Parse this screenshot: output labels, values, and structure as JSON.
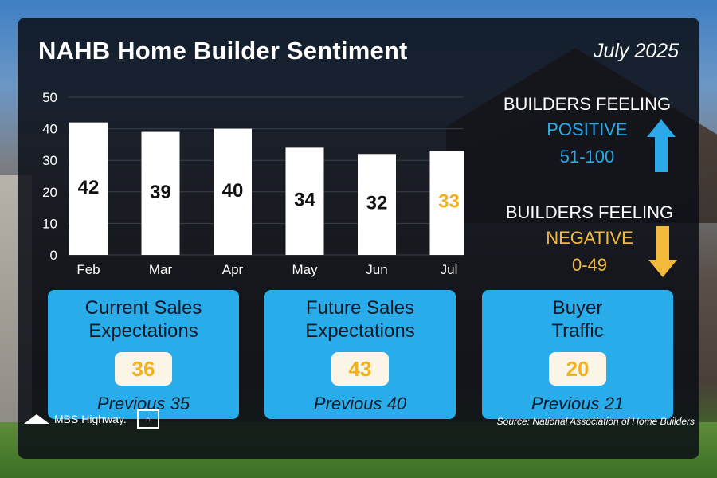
{
  "title": "NAHB Home Builder Sentiment",
  "date": "July 2025",
  "chart_data": {
    "type": "bar",
    "categories": [
      "Feb",
      "Mar",
      "Apr",
      "May",
      "Jun",
      "Jul"
    ],
    "values": [
      42,
      39,
      40,
      34,
      32,
      33
    ],
    "ylim": [
      0,
      50
    ],
    "yticks": [
      0,
      10,
      20,
      30,
      40,
      50
    ],
    "grid": true,
    "highlight_index": 5,
    "colors": {
      "bar": "#ffffff",
      "label": "#111111",
      "highlight_label": "#f2b21f",
      "grid": "#3a3f48",
      "tick_text": "#ffffff"
    }
  },
  "legend": {
    "positive": {
      "heading": "BUILDERS FEELING",
      "label": "POSITIVE",
      "range": "51-100",
      "color": "#2ba9e8"
    },
    "negative": {
      "heading": "BUILDERS FEELING",
      "label": "NEGATIVE",
      "range": "0-49",
      "color": "#f2b93a"
    }
  },
  "cards": [
    {
      "title_line1": "Current Sales",
      "title_line2": "Expectations",
      "value": "36",
      "previous": "Previous 35"
    },
    {
      "title_line1": "Future Sales",
      "title_line2": "Expectations",
      "value": "43",
      "previous": "Previous 40"
    },
    {
      "title_line1": "Buyer",
      "title_line2": "Traffic",
      "value": "20",
      "previous": "Previous 21"
    }
  ],
  "brand": {
    "name": "MBS Highway.",
    "logo_icon": "mountain-icon",
    "housing_icon": "equal-housing-icon"
  },
  "source": "Source: National Association of Home Builders"
}
